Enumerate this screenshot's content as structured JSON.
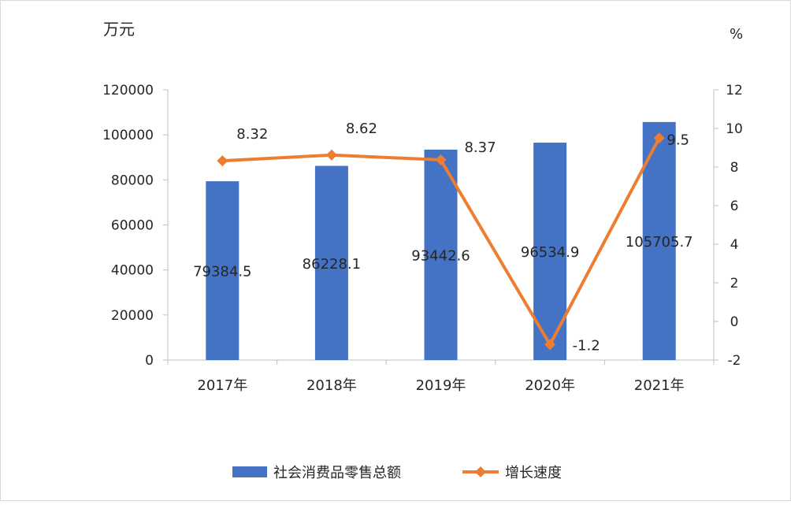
{
  "chart_data": {
    "type": "bar",
    "categories": [
      "2017年",
      "2018年",
      "2019年",
      "2020年",
      "2021年"
    ],
    "y_left_unit": "万元",
    "y_right_unit": "%",
    "y_left_lim": [
      0,
      120000
    ],
    "y_left_ticks": [
      "0",
      "20000",
      "40000",
      "60000",
      "80000",
      "100000",
      "120000"
    ],
    "y_right_lim": [
      -2,
      12
    ],
    "y_right_ticks": [
      "-2",
      "0",
      "2",
      "4",
      "6",
      "8",
      "10",
      "12"
    ],
    "grid": false,
    "legend_position": "bottom",
    "series": [
      {
        "name": "社会消费品零售总额",
        "kind": "bar",
        "axis": "left",
        "color": "#4472c4",
        "values": [
          79384.5,
          86228.1,
          93442.6,
          96534.9,
          105705.7
        ],
        "labels": [
          "79384.5",
          "86228.1",
          "93442.6",
          "96534.9",
          "105705.7"
        ]
      },
      {
        "name": "增长速度",
        "kind": "line",
        "axis": "right",
        "color": "#ed7d31",
        "marker": "diamond",
        "values": [
          8.32,
          8.62,
          8.37,
          -1.2,
          9.5
        ],
        "labels": [
          "8.32",
          "8.62",
          "8.37",
          "-1.2",
          "9.5"
        ]
      }
    ]
  }
}
